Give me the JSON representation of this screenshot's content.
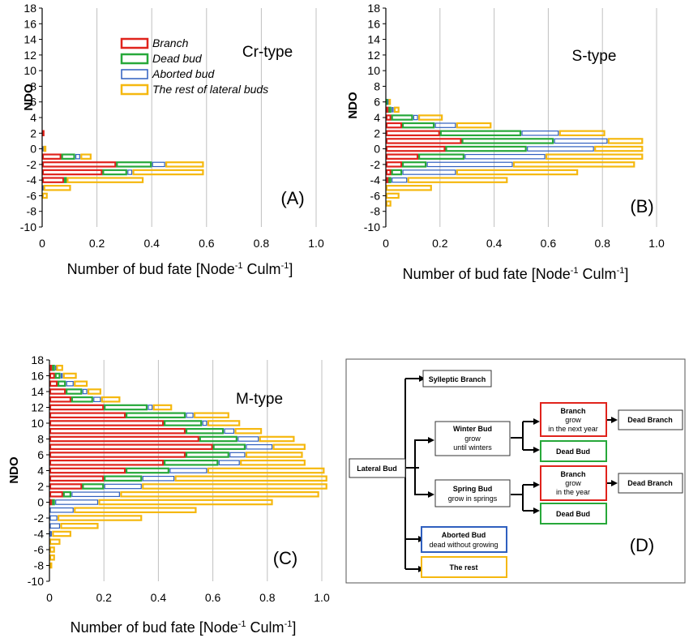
{
  "colors": {
    "branch": "#e0231c",
    "dead_bud": "#27a83a",
    "aborted_bud": "#2f5fbf",
    "rest": "#f5b80f",
    "grid": "#c0c0c0",
    "box_black": "#333333"
  },
  "legend": {
    "items": [
      "Branch",
      "Dead bud",
      "Aborted bud",
      "The rest of lateral buds"
    ]
  },
  "chart_data": [
    {
      "type": "bar",
      "orientation": "horizontal",
      "stacked": true,
      "panel_label": "(A)",
      "title": "Cr-type",
      "ylabel": "NDO",
      "xlabel": "Number of bud fate [Node",
      "xlabel_sup": "-1",
      "xlabel_tail": " Culm",
      "xlabel_sup2": "-1",
      "xlabel_end": "]",
      "xlim": [
        0,
        1.0
      ],
      "ylim": [
        -10,
        18
      ],
      "xticks": [
        "0",
        "0.2",
        "0.4",
        "0.6",
        "0.8",
        "1.0"
      ],
      "yticks": [
        "18",
        "16",
        "14",
        "12",
        "10",
        "8",
        "6",
        "4",
        "2",
        "0",
        "-2",
        "-4",
        "-6",
        "-8",
        "-10"
      ],
      "grid": true,
      "ndo": [
        2,
        1,
        0,
        -1,
        -2,
        -3,
        -4,
        -5,
        -6
      ],
      "series": [
        {
          "name": "Branch",
          "values": [
            0.005,
            0.0,
            0.0,
            0.07,
            0.27,
            0.22,
            0.08,
            0.0,
            0.0
          ]
        },
        {
          "name": "Dead bud",
          "values": [
            0.0,
            0.0,
            0.0,
            0.05,
            0.13,
            0.09,
            0.01,
            0.0,
            0.0
          ]
        },
        {
          "name": "Aborted bud",
          "values": [
            0.0,
            0.0,
            0.005,
            0.02,
            0.05,
            0.02,
            0.0,
            0.005,
            0.0
          ]
        },
        {
          "name": "The rest of lateral buds",
          "values": [
            0.0,
            0.0,
            0.01,
            0.04,
            0.14,
            0.26,
            0.28,
            0.1,
            0.02
          ]
        }
      ]
    },
    {
      "type": "bar",
      "orientation": "horizontal",
      "stacked": true,
      "panel_label": "(B)",
      "title": "S-type",
      "ylabel": "NDO",
      "xlabel": "Number of bud fate [Node",
      "xlabel_sup": "-1",
      "xlabel_tail": " Culm",
      "xlabel_sup2": "-1",
      "xlabel_end": "]",
      "xlim": [
        0,
        1.0
      ],
      "ylim": [
        -10,
        18
      ],
      "xticks": [
        "0",
        "0.2",
        "0.4",
        "0.6",
        "0.8",
        "1.0"
      ],
      "yticks": [
        "18",
        "16",
        "14",
        "12",
        "10",
        "8",
        "6",
        "4",
        "2",
        "0",
        "-2",
        "-4",
        "-6",
        "-8",
        "-10"
      ],
      "grid": true,
      "ndo": [
        6,
        5,
        4,
        3,
        2,
        1,
        0,
        -1,
        -2,
        -3,
        -4,
        -5,
        -6,
        -7
      ],
      "series": [
        {
          "name": "Branch",
          "values": [
            0.0,
            0.01,
            0.02,
            0.06,
            0.2,
            0.28,
            0.22,
            0.12,
            0.06,
            0.02,
            0.01,
            0.0,
            0.0,
            0.0
          ]
        },
        {
          "name": "Dead bud",
          "values": [
            0.005,
            0.01,
            0.08,
            0.12,
            0.3,
            0.34,
            0.3,
            0.17,
            0.09,
            0.04,
            0.01,
            0.0,
            0.0,
            0.0
          ]
        },
        {
          "name": "Aborted bud",
          "values": [
            0.005,
            0.01,
            0.02,
            0.08,
            0.14,
            0.2,
            0.25,
            0.3,
            0.32,
            0.2,
            0.06,
            0.0,
            0.0,
            0.0
          ]
        },
        {
          "name": "The rest of lateral buds",
          "values": [
            0.005,
            0.02,
            0.09,
            0.13,
            0.17,
            0.13,
            0.18,
            0.36,
            0.45,
            0.45,
            0.37,
            0.17,
            0.05,
            0.02
          ]
        }
      ]
    },
    {
      "type": "bar",
      "orientation": "horizontal",
      "stacked": true,
      "panel_label": "(C)",
      "title": "M-type",
      "ylabel": "NDO",
      "xlabel": "Number of bud fate [Node",
      "xlabel_sup": "-1",
      "xlabel_tail": " Culm",
      "xlabel_sup2": "-1",
      "xlabel_end": "]",
      "xlim": [
        0,
        1.0
      ],
      "ylim": [
        -10,
        18
      ],
      "xticks": [
        "0",
        "0.2",
        "0.4",
        "0.6",
        "0.8",
        "1.0"
      ],
      "yticks": [
        "18",
        "16",
        "14",
        "12",
        "10",
        "8",
        "6",
        "4",
        "2",
        "0",
        "-2",
        "-4",
        "-6",
        "-8",
        "-10"
      ],
      "grid": true,
      "ndo": [
        18,
        17,
        16,
        15,
        14,
        13,
        12,
        11,
        10,
        9,
        8,
        7,
        6,
        5,
        4,
        3,
        2,
        1,
        0,
        -1,
        -2,
        -3,
        -4,
        -5,
        -6,
        -7,
        -8
      ],
      "series": [
        {
          "name": "Branch",
          "values": [
            0.0,
            0.01,
            0.02,
            0.03,
            0.06,
            0.08,
            0.2,
            0.28,
            0.42,
            0.5,
            0.55,
            0.6,
            0.5,
            0.42,
            0.28,
            0.2,
            0.12,
            0.05,
            0.01,
            0.0,
            0.0,
            0.0,
            0.0,
            0.0,
            0.0,
            0.0,
            0.0
          ]
        },
        {
          "name": "Dead bud",
          "values": [
            0.0,
            0.01,
            0.02,
            0.03,
            0.06,
            0.08,
            0.16,
            0.22,
            0.14,
            0.14,
            0.14,
            0.12,
            0.16,
            0.2,
            0.16,
            0.14,
            0.08,
            0.03,
            0.01,
            0.0,
            0.0,
            0.0,
            0.0,
            0.0,
            0.0,
            0.0,
            0.0
          ]
        },
        {
          "name": "Aborted bud",
          "values": [
            0.0,
            0.005,
            0.01,
            0.03,
            0.02,
            0.03,
            0.02,
            0.03,
            0.02,
            0.04,
            0.08,
            0.1,
            0.06,
            0.08,
            0.14,
            0.12,
            0.14,
            0.18,
            0.16,
            0.09,
            0.03,
            0.04,
            0.01,
            0.0,
            0.0,
            0.0,
            0.0
          ]
        },
        {
          "name": "The rest of lateral buds",
          "values": [
            0.0,
            0.025,
            0.05,
            0.05,
            0.05,
            0.07,
            0.07,
            0.13,
            0.12,
            0.1,
            0.13,
            0.12,
            0.21,
            0.24,
            0.43,
            0.56,
            0.68,
            0.73,
            0.64,
            0.45,
            0.31,
            0.14,
            0.07,
            0.04,
            0.02,
            0.02,
            0.01
          ]
        }
      ]
    }
  ],
  "diagram": {
    "panel_label": "(D)",
    "nodes": {
      "lateral": {
        "title": "Lateral Bud"
      },
      "sylleptic": {
        "title": "Sylleptic Branch"
      },
      "winter": {
        "title": "Winter Bud",
        "sub1": "grow",
        "sub2": "until winters"
      },
      "spring": {
        "title": "Spring Bud",
        "sub1": "grow in springs"
      },
      "branch1": {
        "title": "Branch",
        "sub1": "grow",
        "sub2": "in the next year"
      },
      "dead1": {
        "title": "Dead  Bud"
      },
      "deadbranch1": {
        "title": "Dead  Branch"
      },
      "branch2": {
        "title": "Branch",
        "sub1": "grow",
        "sub2": "in the year"
      },
      "dead2": {
        "title": "Dead  Bud"
      },
      "deadbranch2": {
        "title": "Dead  Branch"
      },
      "aborted": {
        "title": "Aborted Bud",
        "sub1": "dead without growing"
      },
      "rest": {
        "title": "The rest"
      }
    }
  }
}
